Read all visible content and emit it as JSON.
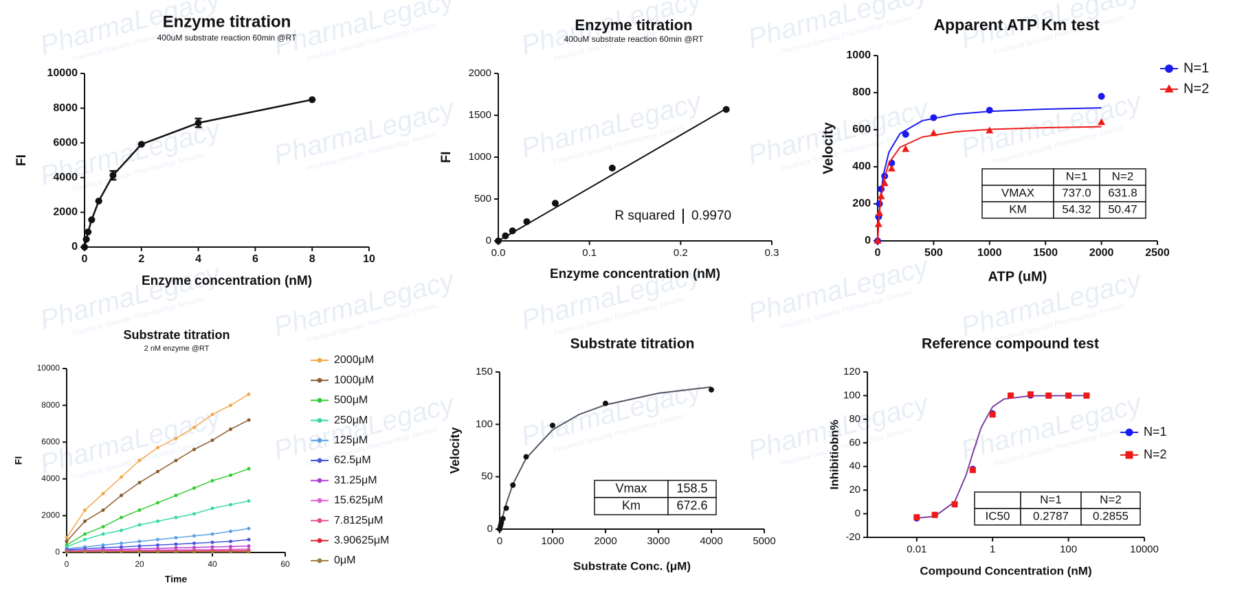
{
  "watermark": "PharmaLegacy",
  "watermark_tagline": "Preclinical Specialty Pharmacology Services",
  "chart_data": [
    {
      "type": "line",
      "title": "Enzyme titration",
      "subtitle": "400uM substrate reaction 60min @RT",
      "xlabel": "Enzyme concentration (nM)",
      "ylabel": "FI",
      "xlim": [
        0,
        10
      ],
      "xticks": [
        0,
        2,
        4,
        6,
        8,
        10
      ],
      "ylim": [
        0,
        10000
      ],
      "yticks": [
        0,
        2000,
        4000,
        6000,
        8000,
        10000
      ],
      "x": [
        0,
        0.0625,
        0.125,
        0.25,
        0.5,
        1,
        2,
        4,
        8
      ],
      "series": [
        {
          "color": "#111111",
          "marker": "circle",
          "values": [
            0,
            450,
            870,
            1570,
            2650,
            4130,
            5920,
            7150,
            8490
          ],
          "errors": [
            0,
            0,
            0,
            0,
            0,
            250,
            0,
            250,
            0
          ]
        }
      ]
    },
    {
      "type": "scatter",
      "title": "Enzyme titration",
      "subtitle": "400uM substrate reaction 60min @RT",
      "xlabel": "Enzyme concentration (nM)",
      "ylabel": "FI",
      "xlim": [
        0,
        0.3
      ],
      "xticks": [
        {
          "value": 0,
          "label": "0.0"
        },
        0.1,
        0.2,
        0.3
      ],
      "ylim": [
        0,
        2000
      ],
      "yticks": [
        0,
        500,
        1000,
        1500,
        2000
      ],
      "x": [
        0,
        0.0078,
        0.0156,
        0.03125,
        0.0625,
        0.125,
        0.25
      ],
      "series": [
        {
          "color": "#111111",
          "marker": "circle",
          "values": [
            0,
            60,
            120,
            230,
            450,
            870,
            1570
          ],
          "fit": {
            "x": [
              0,
              0.25
            ],
            "values": [
              0,
              1580
            ]
          }
        }
      ],
      "annotation": {
        "label": "R squared",
        "value": "0.9970"
      }
    },
    {
      "type": "scatter",
      "title": "Apparent ATP Km test",
      "xlabel": "ATP (uM)",
      "ylabel": "Velocity",
      "xlim": [
        0,
        2500
      ],
      "xticks": [
        0,
        500,
        1000,
        1500,
        2000,
        2500
      ],
      "ylim": [
        0,
        1000
      ],
      "yticks": [
        0,
        200,
        400,
        600,
        800,
        1000
      ],
      "legend": "right",
      "x": [
        0,
        7.8,
        15.6,
        31.25,
        62.5,
        125,
        250,
        500,
        1000,
        2000
      ],
      "series": [
        {
          "name": "N=1",
          "color": "#1a1aee",
          "marker": "circle",
          "values": [
            0,
            130,
            200,
            280,
            350,
            420,
            575,
            665,
            705,
            780
          ],
          "fit": {
            "x": [
              0,
              10,
              25,
              50,
              100,
              200,
              400,
              700,
              1000,
              1500,
              2000
            ],
            "values": [
              0,
              115,
              232,
              353,
              478,
              579,
              649,
              684,
              699,
              711,
              718
            ]
          }
        },
        {
          "name": "N=2",
          "color": "#ee1a1a",
          "marker": "triangle",
          "values": [
            0,
            90,
            150,
            240,
            310,
            390,
            495,
            580,
            595,
            640
          ],
          "fit": {
            "x": [
              0,
              10,
              25,
              50,
              100,
              200,
              400,
              700,
              1000,
              1500,
              2000
            ],
            "values": [
              0,
              105,
              209,
              315,
              420,
              505,
              561,
              589,
              602,
              611,
              616
            ]
          }
        }
      ],
      "table": {
        "columns": [
          "N=1",
          "N=2"
        ],
        "rows": [
          {
            "label": "VMAX",
            "cells": [
              "737.0",
              "631.8"
            ]
          },
          {
            "label": "KM",
            "cells": [
              "54.32",
              "50.47"
            ]
          }
        ]
      }
    },
    {
      "type": "line",
      "title": "Substrate titration",
      "subtitle": "2 nM enzyme @RT",
      "xlabel": "Time",
      "ylabel": "FI",
      "xlim": [
        0,
        60
      ],
      "xticks": [
        0,
        20,
        40,
        60
      ],
      "ylim": [
        0,
        10000
      ],
      "yticks": [
        0,
        2000,
        4000,
        6000,
        8000,
        10000
      ],
      "legend": "right",
      "x": [
        0,
        5,
        10,
        15,
        20,
        25,
        30,
        35,
        40,
        45,
        50
      ],
      "series": [
        {
          "name": "2000μM",
          "color": "#f2a64a",
          "marker": "circle",
          "values": [
            800,
            2300,
            3200,
            4100,
            5000,
            5700,
            6200,
            6800,
            7500,
            8000,
            8600
          ]
        },
        {
          "name": "1000μM",
          "color": "#8a5a2e",
          "marker": "circle",
          "values": [
            600,
            1700,
            2300,
            3100,
            3800,
            4400,
            5000,
            5600,
            6100,
            6700,
            7200
          ]
        },
        {
          "name": "500μM",
          "color": "#33cc33",
          "marker": "circle",
          "values": [
            400,
            1000,
            1400,
            1900,
            2300,
            2700,
            3100,
            3500,
            3900,
            4200,
            4550
          ]
        },
        {
          "name": "250μM",
          "color": "#33d9a6",
          "marker": "circle",
          "values": [
            300,
            700,
            1000,
            1200,
            1500,
            1700,
            1900,
            2100,
            2400,
            2600,
            2800
          ]
        },
        {
          "name": "125μM",
          "color": "#5aa0e6",
          "marker": "circle",
          "values": [
            200,
            300,
            400,
            500,
            600,
            700,
            800,
            900,
            1000,
            1150,
            1300
          ]
        },
        {
          "name": "62.5μM",
          "color": "#4455dd",
          "marker": "circle",
          "values": [
            150,
            200,
            250,
            300,
            350,
            400,
            450,
            500,
            550,
            600,
            700
          ]
        },
        {
          "name": "31.25μM",
          "color": "#b040d0",
          "marker": "circle",
          "values": [
            100,
            120,
            150,
            170,
            200,
            220,
            250,
            270,
            300,
            320,
            350
          ]
        },
        {
          "name": "15.625μM",
          "color": "#e060d0",
          "marker": "circle",
          "values": [
            80,
            90,
            100,
            110,
            120,
            130,
            140,
            150,
            160,
            170,
            180
          ]
        },
        {
          "name": "7.8125μM",
          "color": "#e05090",
          "marker": "circle",
          "values": [
            60,
            65,
            70,
            75,
            80,
            85,
            90,
            95,
            100,
            105,
            110
          ]
        },
        {
          "name": "3.90625μM",
          "color": "#dd2233",
          "marker": "circle",
          "values": [
            40,
            42,
            44,
            46,
            48,
            50,
            52,
            54,
            56,
            58,
            60
          ]
        },
        {
          "name": "0μM",
          "color": "#a08040",
          "marker": "circle",
          "values": [
            30,
            30,
            30,
            30,
            30,
            30,
            30,
            30,
            30,
            30,
            30
          ]
        }
      ]
    },
    {
      "type": "scatter",
      "title": "Substrate titration",
      "xlabel": "Substrate Conc. (μM)",
      "ylabel": "Velocity",
      "xlim": [
        0,
        5000
      ],
      "xticks": [
        0,
        1000,
        2000,
        3000,
        4000,
        5000
      ],
      "ylim": [
        0,
        150
      ],
      "yticks": [
        0,
        50,
        100,
        150
      ],
      "x": [
        0,
        15.6,
        31.25,
        62.5,
        125,
        250,
        500,
        1000,
        2000,
        4000
      ],
      "series": [
        {
          "color": "#111111",
          "marker": "circle",
          "values": [
            0,
            3,
            6,
            10,
            20,
            42,
            69,
            99,
            120,
            133
          ],
          "fit": {
            "x": [
              0,
              100,
              250,
              500,
              1000,
              1500,
              2000,
              3000,
              4000
            ],
            "values": [
              0,
              20.5,
              42.9,
              67.6,
              94.8,
              109.4,
              118.6,
              129.7,
              135.7
            ],
            "color": "#555566"
          }
        }
      ],
      "table": {
        "rows": [
          {
            "label": "Vmax",
            "cells": [
              "158.5"
            ]
          },
          {
            "label": "Km",
            "cells": [
              "672.6"
            ]
          }
        ]
      }
    },
    {
      "type": "scatter",
      "title": "Reference compound test",
      "xlabel": "Compound Concentration (nM)",
      "ylabel": "Inhibitiobn%",
      "xscale": "log",
      "xlim": [
        0.0005,
        10000
      ],
      "xticks": [
        0.01,
        1,
        100,
        10000
      ],
      "ylim": [
        -20,
        120
      ],
      "yticks": [
        -20,
        0,
        20,
        40,
        60,
        80,
        100,
        120
      ],
      "legend": "right",
      "x": [
        0.01,
        0.03,
        0.1,
        0.3,
        1,
        3,
        10,
        30,
        100,
        300
      ],
      "series": [
        {
          "name": "N=1",
          "color": "#1a1aee",
          "marker": "circle",
          "values": [
            -4,
            -1,
            8,
            38,
            85,
            100,
            100,
            100,
            100,
            100
          ],
          "fit": {
            "x": [
              0.01,
              0.03,
              0.1,
              0.2,
              0.3,
              0.5,
              1,
              2,
              10,
              300
            ],
            "values": [
              -3.7,
              -2.2,
              10.1,
              32.7,
              51.2,
              72.9,
              90.5,
              97.1,
              99.8,
              100
            ],
            "color": "#7b3fa0"
          }
        },
        {
          "name": "N=2",
          "color": "#ee1a1a",
          "marker": "square",
          "values": [
            -3,
            -1,
            8,
            37,
            84,
            100,
            101,
            100,
            100,
            100
          ]
        }
      ],
      "table": {
        "columns": [
          "N=1",
          "N=2"
        ],
        "rows": [
          {
            "label": "IC50",
            "cells": [
              "0.2787",
              "0.2855"
            ]
          }
        ]
      }
    }
  ]
}
